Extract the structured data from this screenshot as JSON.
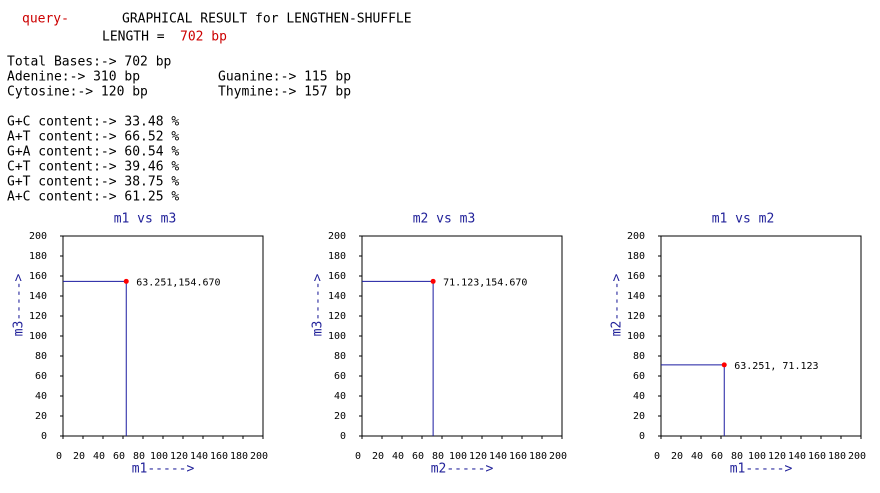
{
  "header": {
    "query": "query-",
    "title": "GRAPHICAL RESULT for LENGTHEN-SHUFFLE",
    "length_label": "LENGTH =",
    "length_value": "702 bp"
  },
  "bases": {
    "total": "Total Bases:-> 702 bp",
    "adenine": "Adenine:-> 310 bp",
    "guanine": "Guanine:-> 115 bp",
    "cytosine": "Cytosine:-> 120 bp",
    "thymine": "Thymine:-> 157 bp"
  },
  "content": [
    "G+C content:-> 33.48 %",
    "A+T content:-> 66.52 %",
    "G+A content:-> 60.54 %",
    "C+T content:-> 39.46 %",
    "G+T content:-> 38.75 %",
    "A+C content:-> 61.25 %"
  ],
  "chart_data": [
    {
      "type": "scatter",
      "title": "m1 vs m3",
      "x_label": "m1----->",
      "y_label": "m3----->",
      "x": [
        63.251
      ],
      "values": [
        154.67
      ],
      "value_labels": [
        "63.251,154.670"
      ],
      "color": "#ff0000",
      "xlim": [
        0,
        200
      ],
      "ylim": [
        0,
        200
      ],
      "xticks": [
        0,
        20,
        40,
        60,
        80,
        100,
        120,
        140,
        160,
        180,
        200
      ],
      "yticks": [
        0,
        20,
        40,
        60,
        80,
        100,
        120,
        140,
        160,
        180,
        200
      ]
    },
    {
      "type": "scatter",
      "title": "m2 vs m3",
      "x_label": "m2----->",
      "y_label": "m3----->",
      "x": [
        71.123
      ],
      "values": [
        154.67
      ],
      "value_labels": [
        "71.123,154.670"
      ],
      "color": "#ff0000",
      "xlim": [
        0,
        200
      ],
      "ylim": [
        0,
        200
      ],
      "xticks": [
        0,
        20,
        40,
        60,
        80,
        100,
        120,
        140,
        160,
        180,
        200
      ],
      "yticks": [
        0,
        20,
        40,
        60,
        80,
        100,
        120,
        140,
        160,
        180,
        200
      ]
    },
    {
      "type": "scatter",
      "title": "m1 vs m2",
      "x_label": "m1----->",
      "y_label": "m2----->",
      "x": [
        63.251
      ],
      "values": [
        71.123
      ],
      "value_labels": [
        "63.251, 71.123"
      ],
      "color": "#ff0000",
      "xlim": [
        0,
        200
      ],
      "ylim": [
        0,
        200
      ],
      "xticks": [
        0,
        20,
        40,
        60,
        80,
        100,
        120,
        140,
        160,
        180,
        200
      ],
      "yticks": [
        0,
        20,
        40,
        60,
        80,
        100,
        120,
        140,
        160,
        180,
        200
      ]
    }
  ]
}
